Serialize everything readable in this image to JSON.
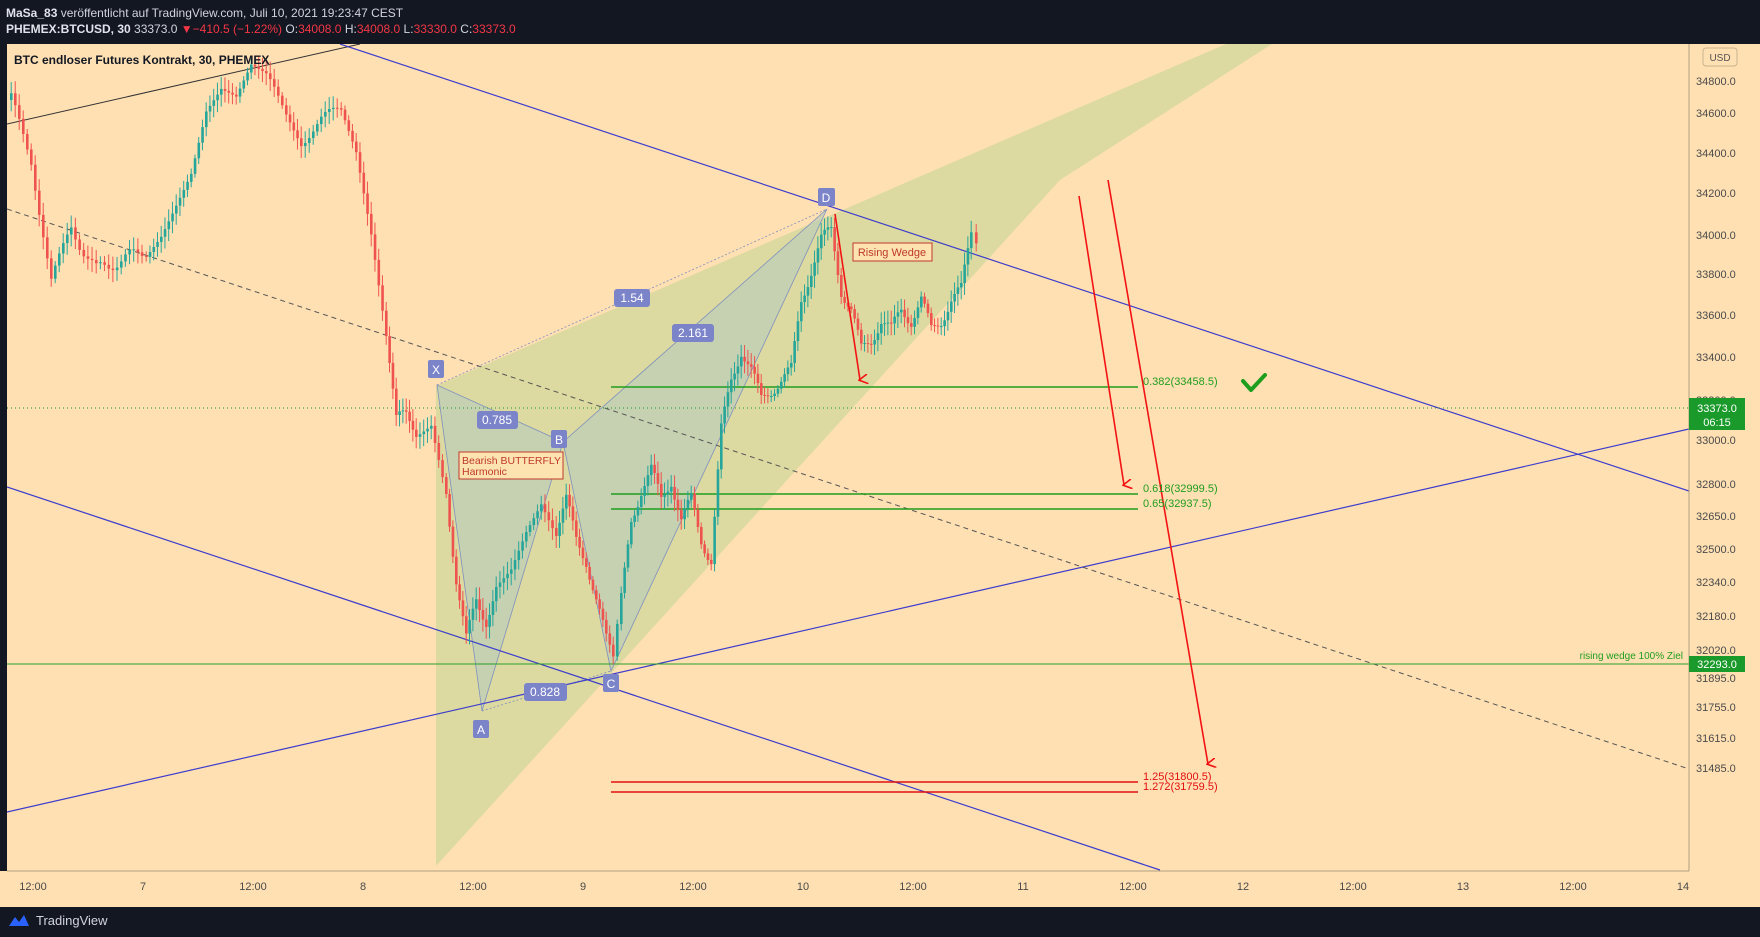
{
  "header": {
    "publisher": "MaSa_83",
    "published_text": " veröffentlicht auf TradingView.com, Juli 10, 2021 19:23:47 CEST",
    "symbol": "PHEMEX:BTCUSD, 30",
    "last": "33373.0",
    "change": "−410.5 (−1.22%)",
    "o_label": "O:",
    "o": "34008.0",
    "h_label": "H:",
    "h": "34008.0",
    "l_label": "L:",
    "l": "33330.0",
    "c_label": "C:",
    "c": "33373.0"
  },
  "chart": {
    "title": "BTC endloser Futures Kontrakt, 30, PHEMEX",
    "currency": "USD",
    "bg_color": "#ffe0b3",
    "price_ticks": [
      "34800.0",
      "34600.0",
      "34400.0",
      "34200.0",
      "34000.0",
      "33800.0",
      "33600.0",
      "33400.0",
      "33200.0",
      "33000.0",
      "32800.0",
      "32650.0",
      "32500.0",
      "32340.0",
      "32180.0",
      "32020.0",
      "31895.0",
      "31755.0",
      "31615.0",
      "31485.0"
    ],
    "time_ticks": [
      "12:00",
      "7",
      "12:00",
      "8",
      "12:00",
      "9",
      "12:00",
      "10",
      "12:00",
      "11",
      "12:00",
      "12",
      "12:00",
      "13",
      "12:00",
      "14"
    ],
    "current_price_label": "33373.0",
    "countdown_label": "06:15",
    "target_price_label": "32293.0",
    "pattern_points": [
      "X",
      "A",
      "B",
      "C",
      "D"
    ],
    "ratios": [
      "0.785",
      "0.828",
      "1.54",
      "2.161"
    ],
    "pattern_name_1": "Bearish BUTTERFLY",
    "pattern_name_2": "Harmonic",
    "wedge_label": "Rising Wedge",
    "fib_levels": [
      "0.382(33458.5)",
      "0.618(32999.5)",
      "0.65(32937.5)",
      "1.25(31800.5)",
      "1.272(31759.5)"
    ],
    "target_text": "rising wedge 100% Ziel"
  },
  "footer": {
    "brand": "TradingView"
  }
}
